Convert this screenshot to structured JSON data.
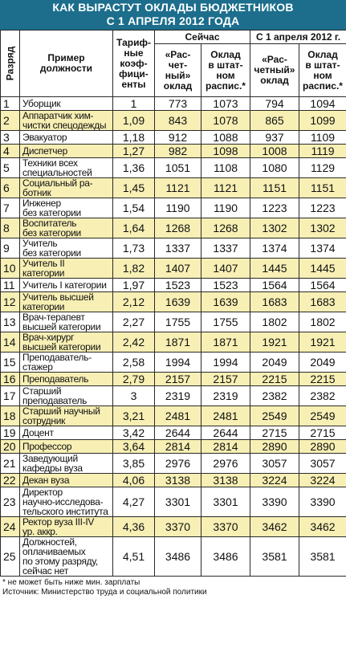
{
  "title": {
    "line1": "КАК ВЫРАСТУТ ОКЛАДЫ БЮДЖЕТНИКОВ",
    "line2": "С 1 АПРЕЛЯ 2012 ГОДА"
  },
  "headers": {
    "rank": "Разряд",
    "position": [
      "Пример",
      "должности"
    ],
    "coef": [
      "Тариф-",
      "ные",
      "коэф-",
      "фици-",
      "енты"
    ],
    "now": "Сейчас",
    "april": "С 1 апреля 2012 г.",
    "calc": [
      "«Рас-",
      "чет-",
      "ный»",
      "оклад"
    ],
    "calc2": [
      "«Рас-",
      "четный»",
      "оклад"
    ],
    "staff": [
      "Оклад",
      "в штат-",
      "ном",
      "распис.*"
    ],
    "staff2": [
      "Оклад",
      "в штат-",
      "ном",
      "распис.*"
    ]
  },
  "rows": [
    {
      "rank": "1",
      "pos": [
        "Уборщик"
      ],
      "coef": "1",
      "a": "773",
      "b": "1073",
      "c": "794",
      "d": "1094"
    },
    {
      "rank": "2",
      "pos": [
        "Аппаратчик хим-",
        "чистки спецодежды"
      ],
      "coef": "1,09",
      "a": "843",
      "b": "1078",
      "c": "865",
      "d": "1099"
    },
    {
      "rank": "3",
      "pos": [
        "Эвакуатор"
      ],
      "coef": "1,18",
      "a": "912",
      "b": "1088",
      "c": "937",
      "d": "1109"
    },
    {
      "rank": "4",
      "pos": [
        "Диспетчер"
      ],
      "coef": "1,27",
      "a": "982",
      "b": "1098",
      "c": "1008",
      "d": "1119"
    },
    {
      "rank": "5",
      "pos": [
        "Техники всех",
        "специальностей"
      ],
      "coef": "1,36",
      "a": "1051",
      "b": "1108",
      "c": "1080",
      "d": "1129"
    },
    {
      "rank": "6",
      "pos": [
        "Социальный ра-",
        "ботник"
      ],
      "coef": "1,45",
      "a": "1121",
      "b": "1121",
      "c": "1151",
      "d": "1151"
    },
    {
      "rank": "7",
      "pos": [
        "Инженер",
        "без категории"
      ],
      "coef": "1,54",
      "a": "1190",
      "b": "1190",
      "c": "1223",
      "d": "1223"
    },
    {
      "rank": "8",
      "pos": [
        "Воспитатель",
        "без категории"
      ],
      "coef": "1,64",
      "a": "1268",
      "b": "1268",
      "c": "1302",
      "d": "1302"
    },
    {
      "rank": "9",
      "pos": [
        "Учитель",
        "без категории"
      ],
      "coef": "1,73",
      "a": "1337",
      "b": "1337",
      "c": "1374",
      "d": "1374"
    },
    {
      "rank": "10",
      "pos": [
        "Учитель II",
        "категории"
      ],
      "coef": "1,82",
      "a": "1407",
      "b": "1407",
      "c": "1445",
      "d": "1445"
    },
    {
      "rank": "11",
      "pos": [
        "Учитель I категории"
      ],
      "coef": "1,97",
      "a": "1523",
      "b": "1523",
      "c": "1564",
      "d": "1564"
    },
    {
      "rank": "12",
      "pos": [
        "Учитель высшей",
        "категории"
      ],
      "coef": "2,12",
      "a": "1639",
      "b": "1639",
      "c": "1683",
      "d": "1683"
    },
    {
      "rank": "13",
      "pos": [
        "Врач-терапевт",
        "высшей категории"
      ],
      "coef": "2,27",
      "a": "1755",
      "b": "1755",
      "c": "1802",
      "d": "1802"
    },
    {
      "rank": "14",
      "pos": [
        "Врач-хирург",
        "высшей категории"
      ],
      "coef": "2,42",
      "a": "1871",
      "b": "1871",
      "c": "1921",
      "d": "1921"
    },
    {
      "rank": "15",
      "pos": [
        "Преподаватель-",
        "стажер"
      ],
      "coef": "2,58",
      "a": "1994",
      "b": "1994",
      "c": "2049",
      "d": "2049"
    },
    {
      "rank": "16",
      "pos": [
        "Преподаватель"
      ],
      "coef": "2,79",
      "a": "2157",
      "b": "2157",
      "c": "2215",
      "d": "2215"
    },
    {
      "rank": "17",
      "pos": [
        "Старший",
        "преподаватель"
      ],
      "coef": "3",
      "a": "2319",
      "b": "2319",
      "c": "2382",
      "d": "2382"
    },
    {
      "rank": "18",
      "pos": [
        "Старший научный",
        "сотрудник"
      ],
      "coef": "3,21",
      "a": "2481",
      "b": "2481",
      "c": "2549",
      "d": "2549"
    },
    {
      "rank": "19",
      "pos": [
        "Доцент"
      ],
      "coef": "3,42",
      "a": "2644",
      "b": "2644",
      "c": "2715",
      "d": "2715"
    },
    {
      "rank": "20",
      "pos": [
        "Профессор"
      ],
      "coef": "3,64",
      "a": "2814",
      "b": "2814",
      "c": "2890",
      "d": "2890"
    },
    {
      "rank": "21",
      "pos": [
        "Заведующий",
        "кафедры вуза"
      ],
      "coef": "3,85",
      "a": "2976",
      "b": "2976",
      "c": "3057",
      "d": "3057"
    },
    {
      "rank": "22",
      "pos": [
        "Декан вуза"
      ],
      "coef": "4,06",
      "a": "3138",
      "b": "3138",
      "c": "3224",
      "d": "3224"
    },
    {
      "rank": "23",
      "pos": [
        "Директор",
        "научно-исследова-",
        "тельского института"
      ],
      "coef": "4,27",
      "a": "3301",
      "b": "3301",
      "c": "3390",
      "d": "3390"
    },
    {
      "rank": "24",
      "pos": [
        "Ректор вуза III-IV",
        "ур. аккр."
      ],
      "coef": "4,36",
      "a": "3370",
      "b": "3370",
      "c": "3462",
      "d": "3462"
    },
    {
      "rank": "25",
      "pos": [
        "Должностей,",
        "оплачиваемых",
        "по этому разряду,",
        "сейчас нет"
      ],
      "coef": "4,51",
      "a": "3486",
      "b": "3486",
      "c": "3581",
      "d": "3581"
    }
  ],
  "footnote": "* не может быть ниже мин. зарплаты",
  "source": "Источник: Министерство труда и социальной политики"
}
